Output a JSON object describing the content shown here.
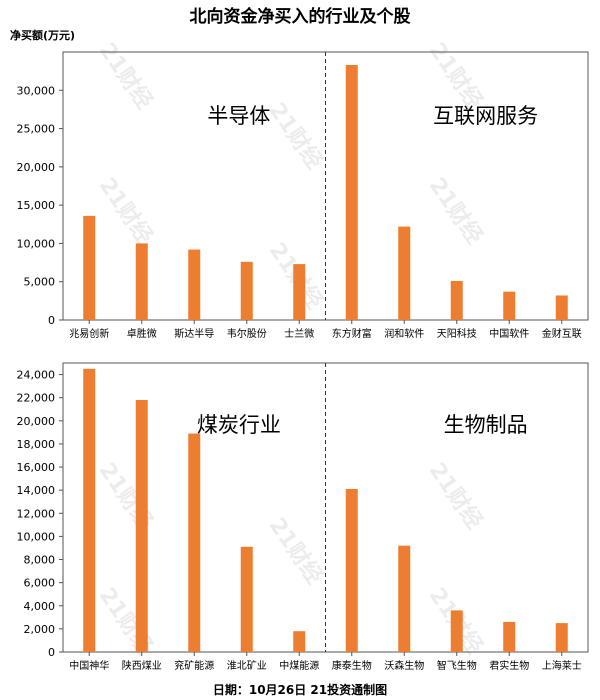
{
  "title": "北向资金净买入的行业及个股",
  "unit_label": "净买额(万元)",
  "footer": "日期：10月26日 21投资通制图",
  "watermark": "21财经",
  "colors": {
    "bar": "#ED7D31",
    "divider": "#333333",
    "axis": "#555555"
  },
  "chart_data": [
    {
      "type": "bar",
      "ylim": [
        0,
        35000
      ],
      "yticks": [
        0,
        5000,
        10000,
        15000,
        20000,
        25000,
        30000
      ],
      "groups": [
        {
          "sector": "半导体",
          "categories": [
            "兆易创新",
            "卓胜微",
            "斯达半导",
            "韦尔股份",
            "士兰微"
          ],
          "values": [
            13600,
            10000,
            9200,
            7600,
            7300
          ]
        },
        {
          "sector": "互联网服务",
          "categories": [
            "东方财富",
            "润和软件",
            "天阳科技",
            "中国软件",
            "金财互联"
          ],
          "values": [
            33300,
            12200,
            5100,
            3700,
            3200
          ]
        }
      ]
    },
    {
      "type": "bar",
      "ylim": [
        0,
        25000
      ],
      "yticks": [
        0,
        2000,
        4000,
        6000,
        8000,
        10000,
        12000,
        14000,
        16000,
        18000,
        20000,
        22000,
        24000
      ],
      "groups": [
        {
          "sector": "煤炭行业",
          "categories": [
            "中国神华",
            "陕西煤业",
            "兖矿能源",
            "淮北矿业",
            "中煤能源"
          ],
          "values": [
            24500,
            21800,
            18900,
            9100,
            1800
          ]
        },
        {
          "sector": "生物制品",
          "categories": [
            "康泰生物",
            "沃森生物",
            "智飞生物",
            "君实生物",
            "上海莱士"
          ],
          "values": [
            14100,
            9200,
            3600,
            2600,
            2500
          ]
        }
      ]
    }
  ]
}
